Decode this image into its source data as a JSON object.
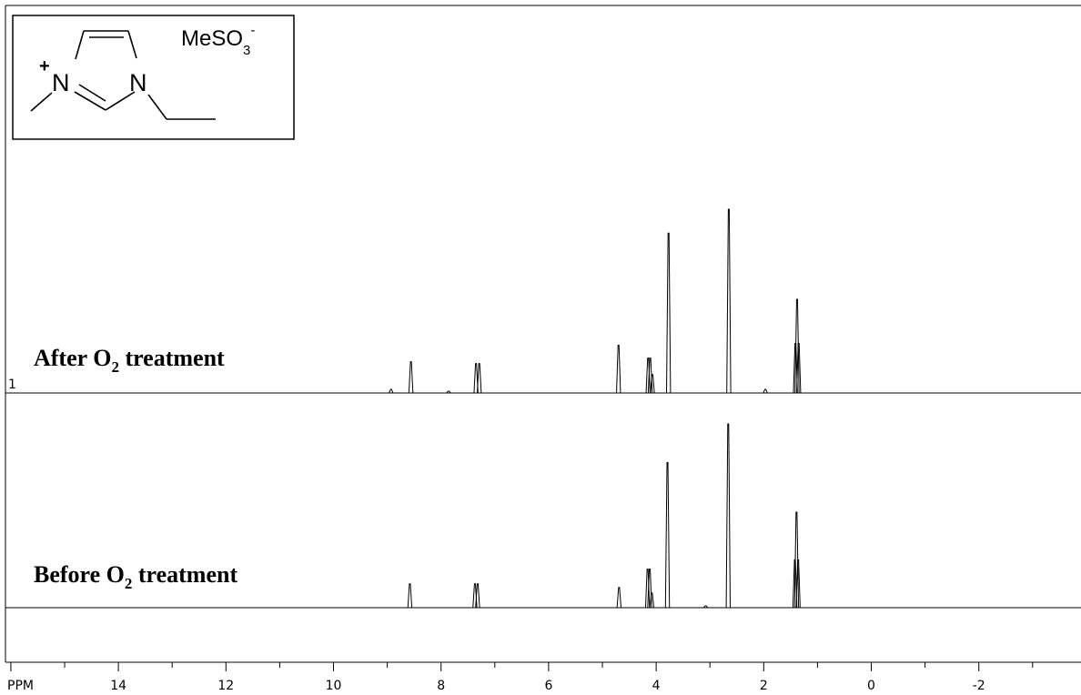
{
  "chart_data": {
    "type": "line",
    "xlabel": "PPM",
    "x_tick_labels": [
      "14",
      "12",
      "10",
      "8",
      "6",
      "4",
      "2",
      "0",
      "-2"
    ],
    "xlim": [
      16.1,
      -3.9
    ],
    "x_reversed": true,
    "grid": false,
    "trace_number_label": "1",
    "series": [
      {
        "name": "After O2 treatment",
        "label_main": "After O",
        "label_sub": "2",
        "label_rest": " treatment",
        "peaks": [
          {
            "ppm": 8.93,
            "height": 0.02
          },
          {
            "ppm": 8.56,
            "height": 0.17
          },
          {
            "ppm": 7.86,
            "height": 0.01
          },
          {
            "ppm": 7.35,
            "height": 0.16
          },
          {
            "ppm": 7.29,
            "height": 0.16
          },
          {
            "ppm": 4.7,
            "height": 0.26
          },
          {
            "ppm": 4.15,
            "height": 0.19
          },
          {
            "ppm": 4.11,
            "height": 0.19
          },
          {
            "ppm": 4.07,
            "height": 0.1
          },
          {
            "ppm": 3.77,
            "height": 0.87
          },
          {
            "ppm": 2.65,
            "height": 1.0
          },
          {
            "ppm": 1.97,
            "height": 0.02
          },
          {
            "ppm": 1.41,
            "height": 0.27
          },
          {
            "ppm": 1.38,
            "height": 0.51
          },
          {
            "ppm": 1.35,
            "height": 0.27
          }
        ]
      },
      {
        "name": "Before O2 treatment",
        "label_main": "Before O",
        "label_sub": "2",
        "label_rest": " treatment",
        "peaks": [
          {
            "ppm": 8.58,
            "height": 0.13
          },
          {
            "ppm": 7.37,
            "height": 0.13
          },
          {
            "ppm": 7.32,
            "height": 0.13
          },
          {
            "ppm": 4.69,
            "height": 0.11
          },
          {
            "ppm": 4.16,
            "height": 0.21
          },
          {
            "ppm": 4.12,
            "height": 0.21
          },
          {
            "ppm": 4.08,
            "height": 0.08
          },
          {
            "ppm": 3.79,
            "height": 0.79
          },
          {
            "ppm": 3.08,
            "height": 0.01
          },
          {
            "ppm": 2.66,
            "height": 1.0
          },
          {
            "ppm": 1.42,
            "height": 0.26
          },
          {
            "ppm": 1.39,
            "height": 0.52
          },
          {
            "ppm": 1.36,
            "height": 0.26
          }
        ]
      }
    ]
  },
  "structure": {
    "atom_n1": "N",
    "atom_n3": "N",
    "charge": "+",
    "anion_main": "MeSO",
    "anion_sub": "3",
    "anion_sup": "-"
  }
}
